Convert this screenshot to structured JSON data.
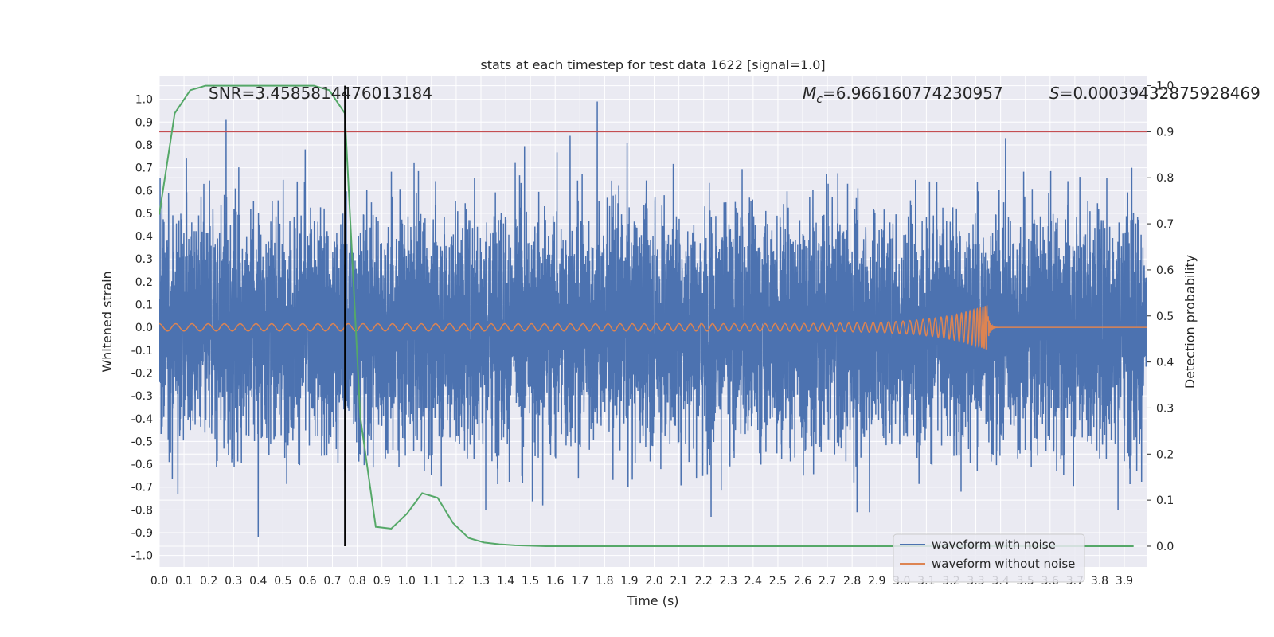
{
  "chart_data": {
    "type": "line",
    "title": "stats at each timestep for test data 1622 [signal=1.0]",
    "xlabel": "Time (s)",
    "ylabel": "Whitened strain",
    "y2label": "Detection probability",
    "xlim": [
      0.0,
      3.99
    ],
    "ylim": [
      -1.05,
      1.1
    ],
    "y2lim": [
      -0.045,
      1.02
    ],
    "grid": true,
    "x_ticks": [
      "0.0",
      "0.1",
      "0.2",
      "0.3",
      "0.4",
      "0.5",
      "0.6",
      "0.7",
      "0.8",
      "0.9",
      "1.0",
      "1.1",
      "1.2",
      "1.3",
      "1.4",
      "1.5",
      "1.6",
      "1.7",
      "1.8",
      "1.9",
      "2.0",
      "2.1",
      "2.2",
      "2.3",
      "2.4",
      "2.5",
      "2.6",
      "2.7",
      "2.8",
      "2.9",
      "3.0",
      "3.1",
      "3.2",
      "3.3",
      "3.4",
      "3.5",
      "3.6",
      "3.7",
      "3.8",
      "3.9"
    ],
    "y_ticks": [
      "1.0",
      "0.9",
      "0.8",
      "0.7",
      "0.6",
      "0.5",
      "0.4",
      "0.3",
      "0.2",
      "0.1",
      "0.0",
      "-0.1",
      "-0.2",
      "-0.3",
      "-0.4",
      "-0.5",
      "-0.6",
      "-0.7",
      "-0.8",
      "-0.9",
      "-1.0"
    ],
    "y2_ticks": [
      "1.0",
      "0.9",
      "0.8",
      "0.7",
      "0.6",
      "0.5",
      "0.4",
      "0.3",
      "0.2",
      "0.1",
      "0.0"
    ],
    "annotations": {
      "snr": "SNR=3.4585814476013184",
      "mc": "=6.966160774230957",
      "mc_symbol": "M",
      "mc_sub": "c",
      "s": "=0.0003943287592846​9",
      "s_symbol": "S"
    },
    "threshold_line": {
      "y2": 0.9,
      "color": "#c44e52"
    },
    "vertical_marker": {
      "x": 0.75,
      "y2_range": [
        0.0,
        1.0
      ],
      "color": "#000000"
    },
    "series": [
      {
        "name": "waveform with noise",
        "color": "#4c72b0",
        "axis": "left",
        "sample_rate": 2048,
        "duration": 4.0,
        "typical_amplitude": 0.28,
        "peaks": [
          {
            "x": 0.27,
            "y": 0.91
          },
          {
            "x": 0.11,
            "y": 0.74
          },
          {
            "x": 0.59,
            "y": 0.78
          },
          {
            "x": 1.03,
            "y": 0.72
          },
          {
            "x": 1.66,
            "y": 0.84
          },
          {
            "x": 1.77,
            "y": 0.99
          },
          {
            "x": 3.42,
            "y": 0.83
          },
          {
            "x": 3.93,
            "y": 0.7
          },
          {
            "x": 3.72,
            "y": 0.66
          },
          {
            "x": 0.4,
            "y": -0.92
          },
          {
            "x": 0.04,
            "y": -0.59
          },
          {
            "x": 0.28,
            "y": -0.56
          },
          {
            "x": 0.75,
            "y": -0.63
          },
          {
            "x": 1.55,
            "y": -0.78
          },
          {
            "x": 2.23,
            "y": -0.83
          },
          {
            "x": 2.82,
            "y": -0.81
          },
          {
            "x": 2.87,
            "y": -0.81
          },
          {
            "x": 3.24,
            "y": -0.72
          },
          {
            "x": 3.95,
            "y": -0.63
          }
        ]
      },
      {
        "name": "waveform without noise",
        "color": "#dd8452",
        "axis": "left",
        "chirp": {
          "start_frequency": 15,
          "merger_time": 3.35,
          "start_amplitude": 0.016,
          "peak_amplitude": 0.1
        }
      },
      {
        "name": "Detection probability",
        "color": "#55a868",
        "axis": "right",
        "x": [
          0.0,
          0.0625,
          0.125,
          0.1875,
          0.25,
          0.3125,
          0.375,
          0.4375,
          0.5,
          0.5625,
          0.625,
          0.6875,
          0.75,
          0.8125,
          0.875,
          0.9375,
          1.0,
          1.0625,
          1.125,
          1.1875,
          1.25,
          1.3125,
          1.375,
          1.4375,
          1.5,
          1.5625,
          1.625,
          1.6875,
          1.75,
          1.8125,
          1.875,
          1.9375,
          2.0,
          2.0625,
          2.125,
          2.1875,
          2.25,
          2.3125,
          2.375,
          2.4375,
          2.5,
          2.5625,
          2.625,
          2.6875,
          2.75,
          2.8125,
          2.875,
          2.9375,
          3.0,
          3.0625,
          3.125,
          3.1875,
          3.25,
          3.3125,
          3.375,
          3.4375,
          3.5,
          3.5625,
          3.625,
          3.6875,
          3.75,
          3.8125,
          3.875,
          3.9375
        ],
        "values": [
          0.72,
          0.94,
          0.99,
          1.0,
          1.0,
          1.0,
          1.0,
          1.0,
          1.0,
          1.0,
          1.0,
          0.99,
          0.94,
          0.28,
          0.042,
          0.038,
          0.07,
          0.115,
          0.105,
          0.05,
          0.018,
          0.008,
          0.004,
          0.002,
          0.001,
          0.0,
          0.0,
          0.0,
          0.0,
          0.0,
          0.0,
          0.0,
          0.0,
          0.0,
          0.0,
          0.0,
          0.0,
          0.0,
          0.0,
          0.0,
          0.0,
          0.0,
          0.0,
          0.0,
          0.0,
          0.0,
          0.0,
          0.0,
          0.0,
          0.0,
          0.0,
          0.0,
          0.0,
          0.0,
          0.0,
          0.0,
          0.0,
          0.0,
          0.0,
          0.0,
          0.0,
          0.0,
          0.0,
          0.0
        ]
      }
    ],
    "legend": {
      "position": "lower-right",
      "entries": [
        "waveform with noise",
        "waveform without noise"
      ]
    },
    "colors": {
      "axes_background": "#eaeaf2",
      "grid": "#ffffff",
      "text": "#262626"
    }
  }
}
